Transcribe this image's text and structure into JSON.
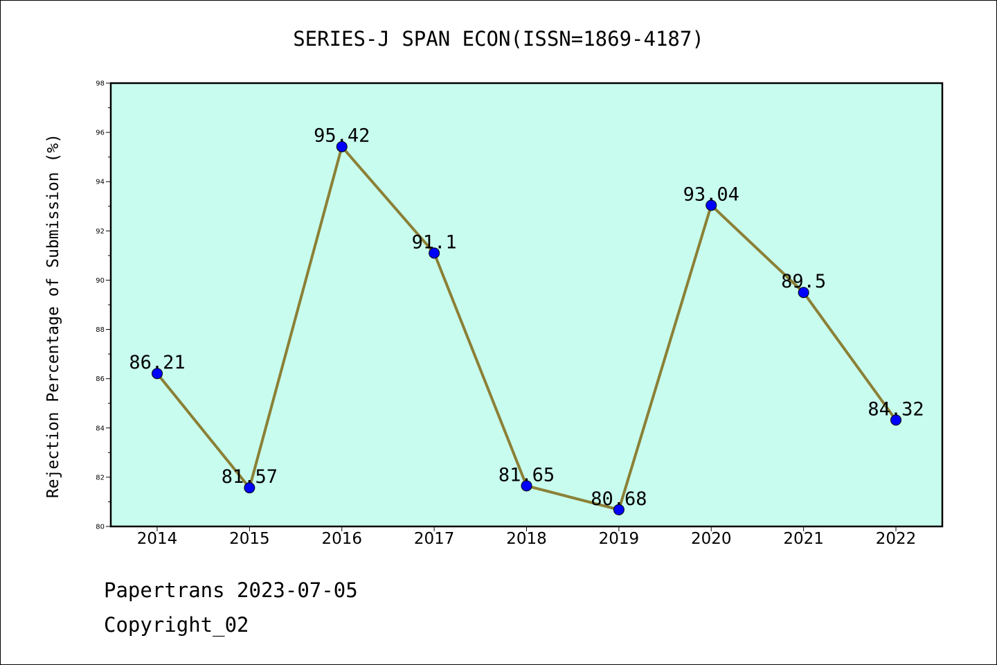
{
  "chart_data": {
    "type": "line",
    "title": "SERIES-J SPAN ECON(ISSN=1869-4187)",
    "xlabel": "",
    "ylabel": "Rejection Percentage of Submission (%)",
    "categories": [
      "2014",
      "2015",
      "2016",
      "2017",
      "2018",
      "2019",
      "2020",
      "2021",
      "2022"
    ],
    "values": [
      86.21,
      81.57,
      95.42,
      91.1,
      81.65,
      80.68,
      93.04,
      89.5,
      84.32
    ],
    "data_labels": [
      "86.21",
      "81.57",
      "95.42",
      "91.1",
      "81.65",
      "80.68",
      "93.04",
      "89.5",
      "84.32"
    ],
    "ylim": [
      80,
      98
    ],
    "y_ticks": [
      80,
      82,
      84,
      86,
      88,
      90,
      92,
      94,
      96,
      98
    ],
    "grid": false,
    "colors": {
      "plot_background": "#c8fcee",
      "line": "#8b8036",
      "marker": "#0000ff"
    }
  },
  "footer": {
    "line1": "Papertrans 2023-07-05",
    "line2": "Copyright_02"
  }
}
